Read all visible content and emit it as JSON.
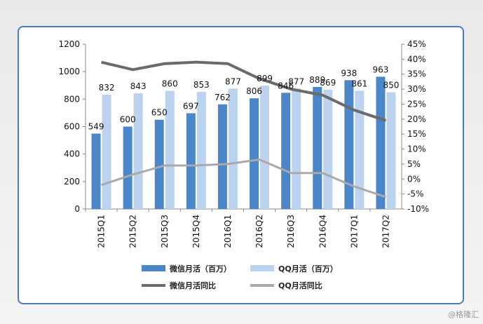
{
  "credit": "@格隆汇",
  "colors": {
    "wechat_bar": "#4a86c8",
    "qq_bar": "#bcd3ef",
    "wechat_line": "#6b6b6b",
    "qq_line": "#a9a9a9",
    "frame": "#4a7cc2"
  },
  "chart_data": {
    "type": "bar",
    "categories": [
      "2015Q1",
      "2015Q2",
      "2015Q3",
      "2015Q4",
      "2016Q1",
      "2016Q2",
      "2016Q3",
      "2016Q4",
      "2017Q1",
      "2017Q2"
    ],
    "series": [
      {
        "name": "微信月活（百万）",
        "kind": "bar",
        "axis": "left",
        "values": [
          549,
          600,
          650,
          697,
          762,
          806,
          846,
          889,
          938,
          963
        ]
      },
      {
        "name": "QQ月活（百万）",
        "kind": "bar",
        "axis": "left",
        "values": [
          832,
          843,
          860,
          853,
          877,
          899,
          877,
          869,
          861,
          850
        ]
      },
      {
        "name": "微信月活同比",
        "kind": "line",
        "axis": "right",
        "values": [
          39,
          36.5,
          38.5,
          39,
          38.5,
          33.5,
          30,
          28,
          23,
          19.5
        ]
      },
      {
        "name": "QQ月活同比",
        "kind": "line",
        "axis": "right",
        "values": [
          -2,
          1.5,
          4.5,
          4.5,
          5,
          6.5,
          2,
          2,
          -2.5,
          -6
        ]
      }
    ],
    "y_left": {
      "min": 0,
      "max": 1200,
      "ticks": [
        "0",
        "200",
        "400",
        "600",
        "800",
        "1000",
        "1200"
      ]
    },
    "y_right": {
      "min": -10,
      "max": 45,
      "ticks": [
        "-10%",
        "-5%",
        "0%",
        "5%",
        "10%",
        "15%",
        "20%",
        "25%",
        "30%",
        "35%",
        "40%",
        "45%"
      ]
    },
    "data_labels_wechat": [
      "549",
      "600",
      "650",
      "697",
      "762",
      "806",
      "846",
      "889",
      "938",
      "963"
    ],
    "data_labels_qq": [
      "832",
      "843",
      "860",
      "853",
      "877",
      "899",
      "877",
      "869",
      "861",
      "850"
    ],
    "legend_position": "bottom",
    "grid": false
  }
}
